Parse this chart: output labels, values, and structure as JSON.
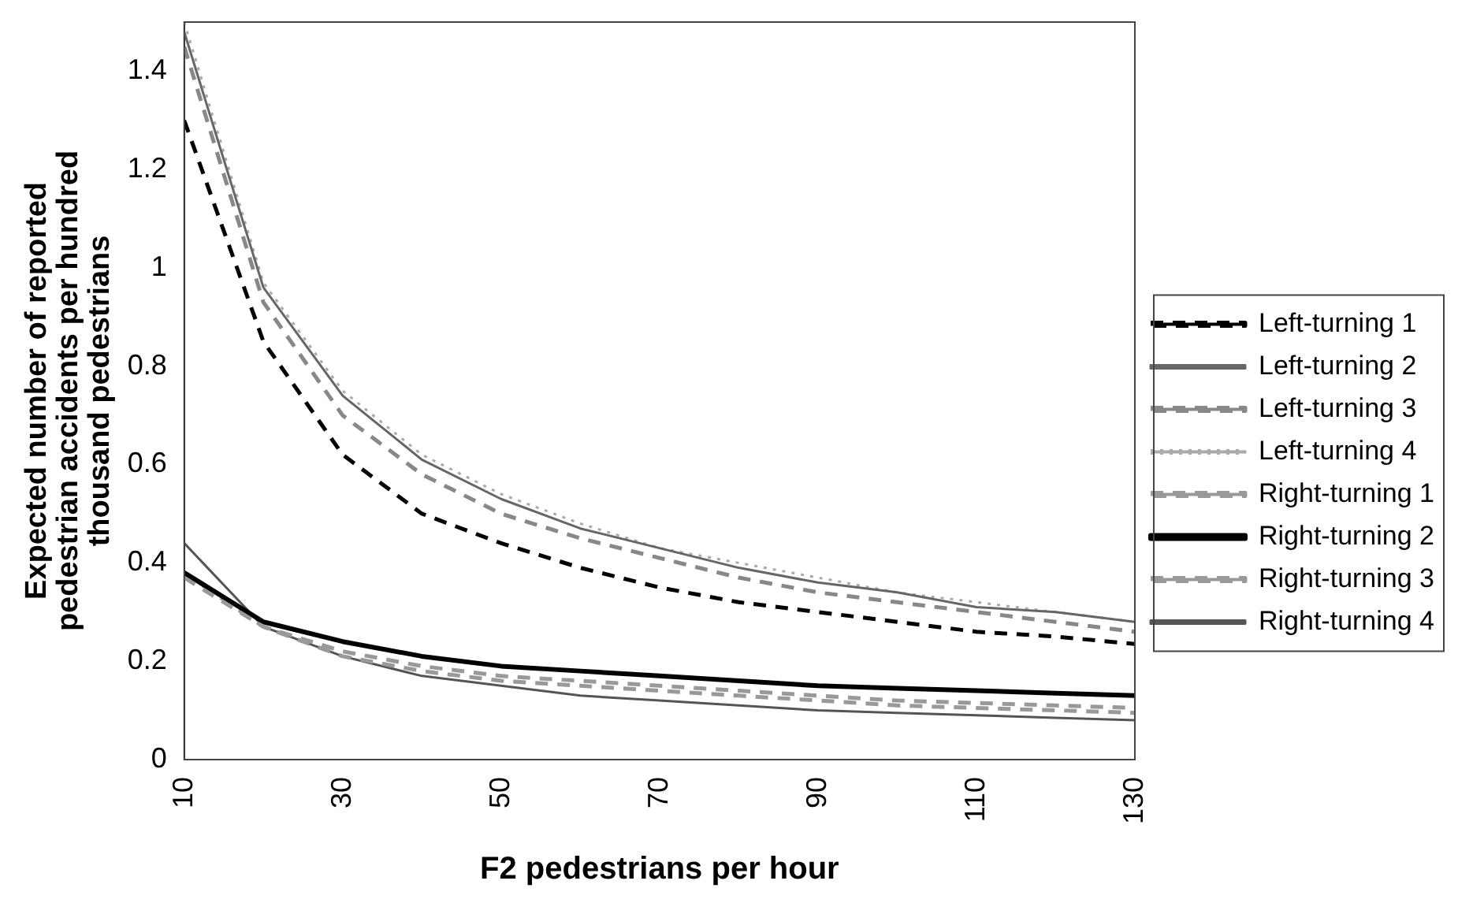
{
  "chart_data": {
    "type": "line",
    "xlabel": "F2 pedestrians per hour",
    "ylabel": "Expected number of reported pedestrian accidents per hundred thousand pedestrians",
    "x": [
      10,
      20,
      30,
      40,
      50,
      60,
      70,
      80,
      90,
      100,
      110,
      120,
      130
    ],
    "xlim": [
      10,
      130
    ],
    "xticks": [
      10,
      30,
      50,
      70,
      90,
      110,
      130
    ],
    "ylim": [
      0,
      1.5
    ],
    "yticks": [
      0,
      0.2,
      0.4,
      0.6,
      0.8,
      1,
      1.2,
      1.4
    ],
    "grid": false,
    "legend": "right",
    "marker": "none",
    "series": [
      {
        "name": "Left-turning 1",
        "color": "#000000",
        "line_style": "dashed",
        "values": [
          1.3,
          0.85,
          0.62,
          0.5,
          0.44,
          0.39,
          0.35,
          0.32,
          0.3,
          0.28,
          0.26,
          0.25,
          0.235
        ]
      },
      {
        "name": "Left-turning 2",
        "color": "#666666",
        "line_style": "solid",
        "values": [
          1.48,
          0.96,
          0.74,
          0.61,
          0.53,
          0.47,
          0.43,
          0.39,
          0.36,
          0.34,
          0.31,
          0.3,
          0.28
        ]
      },
      {
        "name": "Left-turning 3",
        "color": "#888888",
        "line_style": "dashed",
        "values": [
          1.45,
          0.93,
          0.7,
          0.58,
          0.5,
          0.45,
          0.41,
          0.37,
          0.34,
          0.32,
          0.3,
          0.28,
          0.26
        ]
      },
      {
        "name": "Left-turning 4",
        "color": "#aaaaaa",
        "line_style": "dotted",
        "values": [
          1.5,
          0.97,
          0.75,
          0.62,
          0.54,
          0.48,
          0.43,
          0.4,
          0.37,
          0.34,
          0.32,
          0.3,
          0.28
        ]
      },
      {
        "name": "Right-turning 1",
        "color": "#999999",
        "line_style": "dashed",
        "values": [
          0.37,
          0.27,
          0.22,
          0.19,
          0.17,
          0.16,
          0.15,
          0.14,
          0.13,
          0.12,
          0.115,
          0.11,
          0.105
        ]
      },
      {
        "name": "Right-turning 2",
        "color": "#000000",
        "line_style": "solid",
        "values": [
          0.38,
          0.28,
          0.24,
          0.21,
          0.19,
          0.18,
          0.17,
          0.16,
          0.15,
          0.145,
          0.14,
          0.135,
          0.13
        ]
      },
      {
        "name": "Right-turning 3",
        "color": "#999999",
        "line_style": "dashed",
        "values": [
          0.38,
          0.27,
          0.21,
          0.18,
          0.16,
          0.15,
          0.14,
          0.13,
          0.12,
          0.11,
          0.105,
          0.1,
          0.095
        ]
      },
      {
        "name": "Right-turning 4",
        "color": "#555555",
        "line_style": "solid",
        "values": [
          0.44,
          0.27,
          0.21,
          0.17,
          0.15,
          0.13,
          0.12,
          0.11,
          0.1,
          0.095,
          0.09,
          0.085,
          0.08
        ]
      }
    ]
  }
}
